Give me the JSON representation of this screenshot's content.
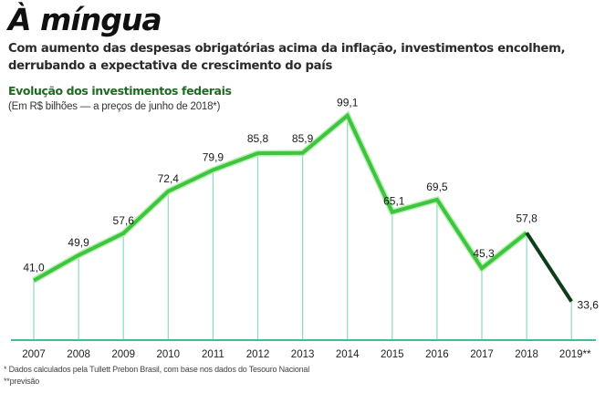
{
  "header": {
    "title": "À míngua",
    "lead": "Com aumento das despesas obrigatórias acima da inflação, investimentos encolhem, derrubando a expectativa de crescimento do país"
  },
  "chart_data": {
    "type": "line",
    "title": "Evolução dos investimentos federais",
    "subtitle": "(Em R$ bilhões — a preços de junho de 2018*)",
    "xlabel": "",
    "ylabel": "",
    "categories": [
      "2007",
      "2008",
      "2009",
      "2010",
      "2011",
      "2012",
      "2013",
      "2014",
      "2015",
      "2016",
      "2017",
      "2018",
      "2019**"
    ],
    "series": [
      {
        "name": "Investimentos federais",
        "values": [
          41.0,
          49.9,
          57.6,
          72.4,
          79.9,
          85.8,
          85.9,
          99.1,
          65.1,
          69.5,
          45.3,
          57.8,
          33.6
        ],
        "labels": [
          "41,0",
          "49,9",
          "57,6",
          "72,4",
          "79,9",
          "85,8",
          "85,9",
          "99,1",
          "65,1",
          "69,5",
          "45,3",
          "57,8",
          "33,6"
        ],
        "color": "#3ec43e",
        "forecast_color": "#0f3d18",
        "forecast_from_index": 11
      }
    ],
    "ylim": [
      20,
      105
    ],
    "grid": "vertical drop lines",
    "legend": "none",
    "axis_color": "#3bbf9a"
  },
  "footnotes": [
    "* Dados calculados pela Tullett Prebon Brasil, com base nos dados do Tesouro Nacional",
    "**previsão"
  ]
}
